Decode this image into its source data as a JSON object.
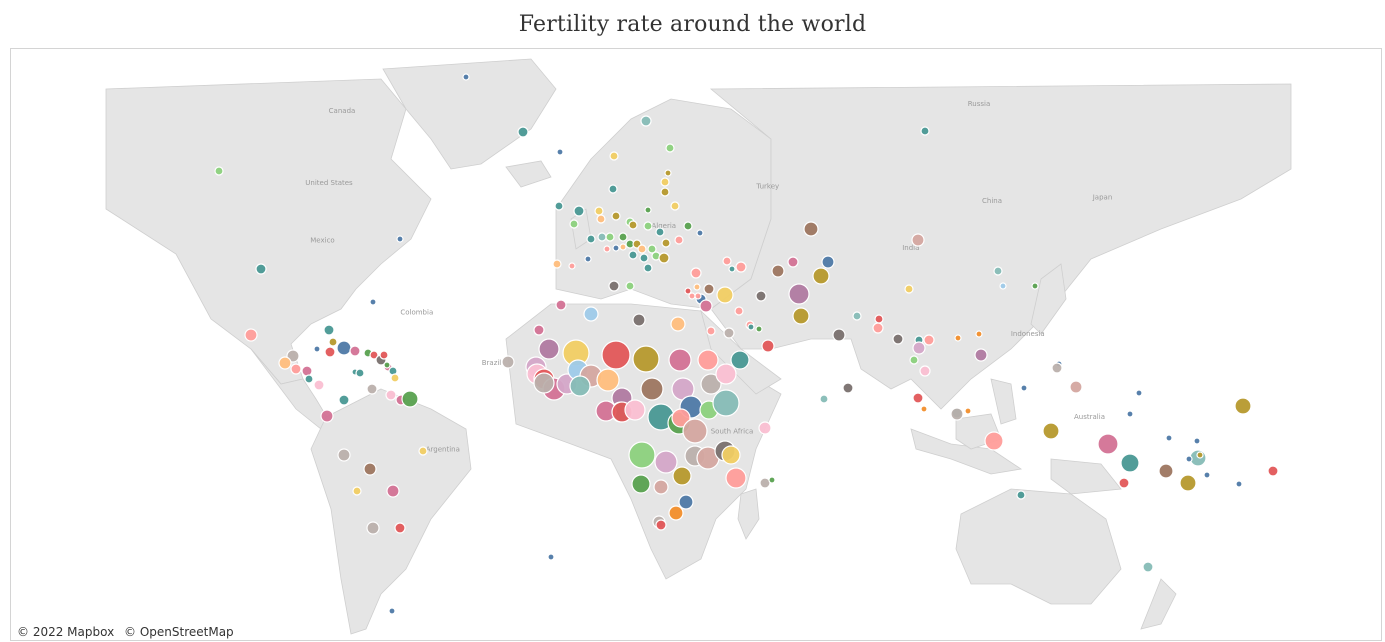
{
  "title": "Fertility rate around the world",
  "attribution": [
    "© 2022 Mapbox",
    "© OpenStreetMap"
  ],
  "labels": [
    {
      "text": "Canada",
      "lon": -96,
      "lat": 60
    },
    {
      "text": "United States",
      "lon": -100,
      "lat": 40
    },
    {
      "text": "Mexico",
      "lon": -102,
      "lat": 24
    },
    {
      "text": "Colombia",
      "lon": -73,
      "lat": 4
    },
    {
      "text": "Brazil",
      "lon": -50,
      "lat": -10
    },
    {
      "text": "Argentina",
      "lon": -65,
      "lat": -34
    },
    {
      "text": "Algeria",
      "lon": 3,
      "lat": 28
    },
    {
      "text": "Turkey",
      "lon": 35,
      "lat": 39
    },
    {
      "text": "Russia",
      "lon": 100,
      "lat": 62
    },
    {
      "text": "China",
      "lon": 104,
      "lat": 35
    },
    {
      "text": "Japan",
      "lon": 138,
      "lat": 36
    },
    {
      "text": "India",
      "lon": 79,
      "lat": 22
    },
    {
      "text": "Indonesia",
      "lon": 115,
      "lat": -2
    },
    {
      "text": "Australia",
      "lon": 134,
      "lat": -25
    },
    {
      "text": "South Africa",
      "lon": 24,
      "lat": -29
    }
  ]
}
